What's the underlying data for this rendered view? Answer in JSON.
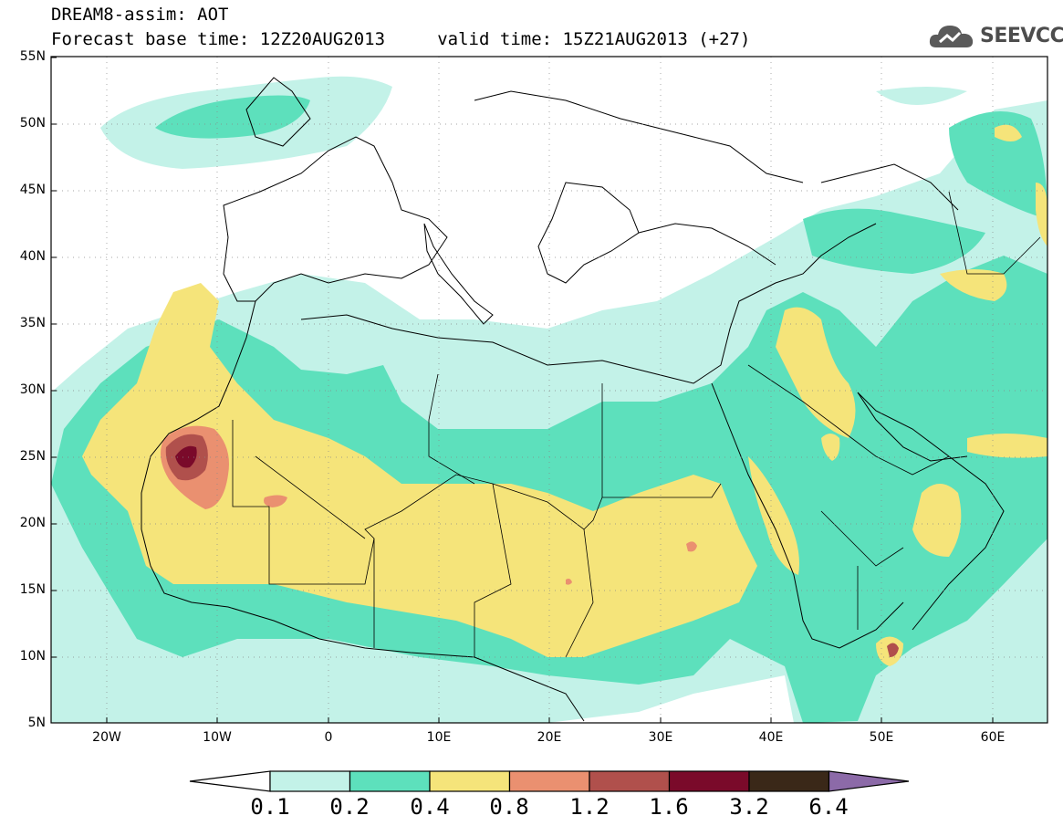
{
  "title": {
    "line1": "DREAM8-assim: AOT",
    "line2": "Forecast base time: 12Z20AUG2013     valid time: 15Z21AUG2013 (+27)"
  },
  "logo": {
    "text": "SEEVCCC",
    "icon": "cloud-icon"
  },
  "axes": {
    "lat_labels": [
      "55N",
      "50N",
      "45N",
      "40N",
      "35N",
      "30N",
      "25N",
      "20N",
      "15N",
      "10N",
      "5N"
    ],
    "lon_labels": [
      "20W",
      "10W",
      "0",
      "10E",
      "20E",
      "30E",
      "40E",
      "50E",
      "60E"
    ]
  },
  "colorbar": {
    "labels": [
      "0.1",
      "0.2",
      "0.4",
      "0.8",
      "1.2",
      "1.6",
      "3.2",
      "6.4"
    ],
    "colors": [
      "#c3f2e8",
      "#5de0bc",
      "#f5e47a",
      "#ea9070",
      "#b0504c",
      "#7a0a2a",
      "#3a2818",
      "#8c6aa8"
    ]
  },
  "map_colors": {
    "c1": "#c3f2e8",
    "c2": "#5de0bc",
    "c3": "#f5e47a",
    "c4": "#ea9070",
    "c5": "#b0504c",
    "c6": "#7a0a2a"
  }
}
